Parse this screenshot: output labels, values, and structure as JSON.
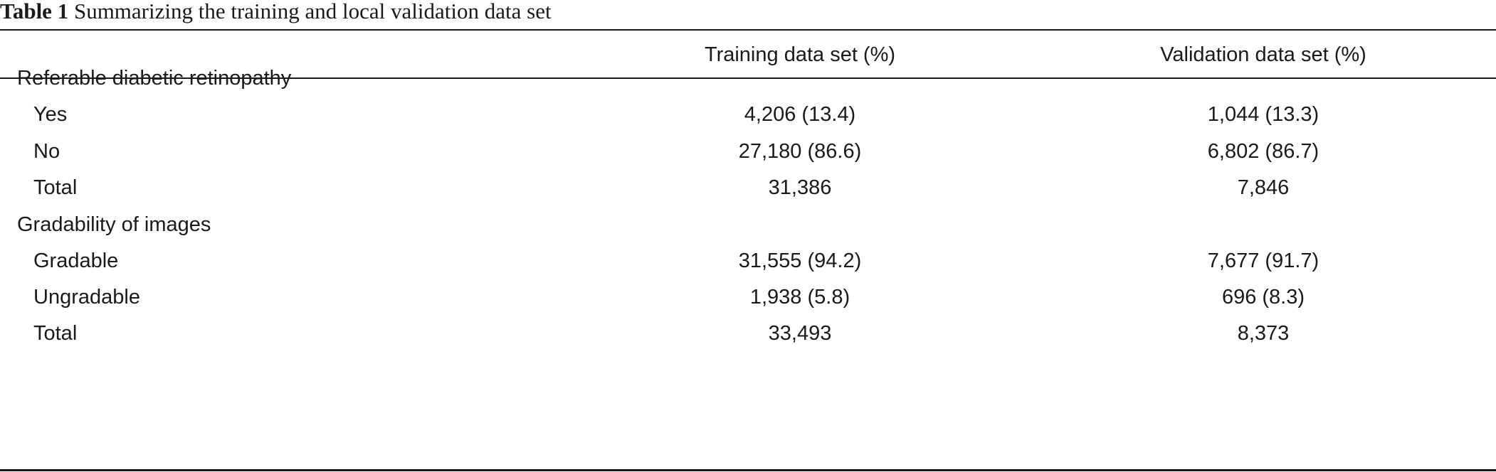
{
  "caption": {
    "label": "Table 1",
    "title": "Summarizing the training and local validation data set"
  },
  "table": {
    "columns": [
      "",
      "Training data set (%)",
      "Validation data set (%)"
    ],
    "sections": [
      {
        "heading": "Referable diabetic retinopathy",
        "rows": [
          {
            "label": "Yes",
            "training": "4,206 (13.4)",
            "validation": "1,044 (13.3)"
          },
          {
            "label": "No",
            "training": "27,180 (86.6)",
            "validation": "6,802 (86.7)"
          },
          {
            "label": "Total",
            "training": "31,386",
            "validation": "7,846"
          }
        ]
      },
      {
        "heading": "Gradability of images",
        "rows": [
          {
            "label": "Gradable",
            "training": "31,555 (94.2)",
            "validation": "7,677 (91.7)"
          },
          {
            "label": "Ungradable",
            "training": "1,938 (5.8)",
            "validation": "696 (8.3)"
          },
          {
            "label": "Total",
            "training": "33,493",
            "validation": "8,373"
          }
        ]
      }
    ]
  }
}
